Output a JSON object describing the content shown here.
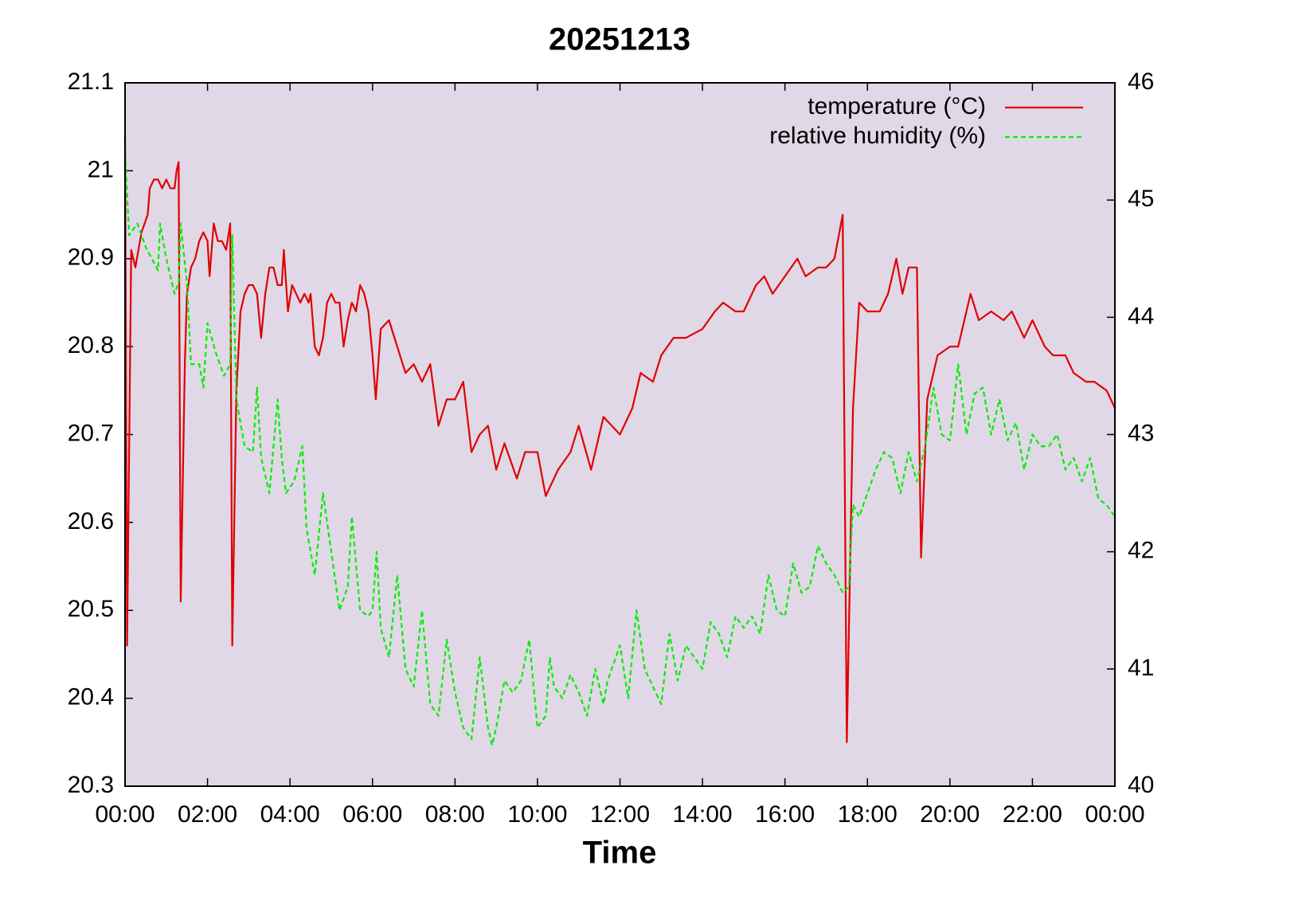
{
  "chart_data": {
    "type": "line",
    "title": "20251213",
    "xlabel": "Time",
    "xlim": [
      0,
      24
    ],
    "ylim": [
      20.3,
      21.1
    ],
    "y2lim": [
      40,
      46
    ],
    "xticks": [
      {
        "value": 0,
        "label": "00:00"
      },
      {
        "value": 2,
        "label": "02:00"
      },
      {
        "value": 4,
        "label": "04:00"
      },
      {
        "value": 6,
        "label": "06:00"
      },
      {
        "value": 8,
        "label": "08:00"
      },
      {
        "value": 10,
        "label": "10:00"
      },
      {
        "value": 12,
        "label": "12:00"
      },
      {
        "value": 14,
        "label": "14:00"
      },
      {
        "value": 16,
        "label": "16:00"
      },
      {
        "value": 18,
        "label": "18:00"
      },
      {
        "value": 20,
        "label": "20:00"
      },
      {
        "value": 22,
        "label": "22:00"
      },
      {
        "value": 24,
        "label": "00:00"
      }
    ],
    "yticks": [
      20.3,
      20.4,
      20.5,
      20.6,
      20.7,
      20.8,
      20.9,
      21,
      21.1
    ],
    "y2ticks": [
      40,
      41,
      42,
      43,
      44,
      45,
      46
    ],
    "legend": "upper right",
    "background": "#e0d8e6",
    "series": [
      {
        "name": "temperature (°C)",
        "color": "#e00000",
        "dash": false,
        "x": [
          0,
          0.05,
          0.15,
          0.25,
          0.4,
          0.55,
          0.6,
          0.7,
          0.8,
          0.9,
          1.0,
          1.1,
          1.2,
          1.25,
          1.3,
          1.35,
          1.45,
          1.5,
          1.6,
          1.7,
          1.8,
          1.9,
          2.0,
          2.05,
          2.15,
          2.25,
          2.35,
          2.45,
          2.55,
          2.6,
          2.7,
          2.8,
          2.9,
          3.0,
          3.1,
          3.2,
          3.3,
          3.4,
          3.5,
          3.6,
          3.7,
          3.8,
          3.85,
          3.95,
          4.05,
          4.15,
          4.25,
          4.35,
          4.45,
          4.5,
          4.6,
          4.7,
          4.8,
          4.9,
          5.0,
          5.1,
          5.2,
          5.3,
          5.4,
          5.5,
          5.6,
          5.7,
          5.8,
          5.9,
          6.0,
          6.08,
          6.2,
          6.4,
          6.6,
          6.8,
          7.0,
          7.2,
          7.4,
          7.6,
          7.8,
          8.0,
          8.2,
          8.4,
          8.6,
          8.8,
          9.0,
          9.2,
          9.5,
          9.7,
          10.0,
          10.2,
          10.5,
          10.8,
          11.0,
          11.3,
          11.6,
          12.0,
          12.3,
          12.5,
          12.8,
          13.0,
          13.3,
          13.6,
          14.0,
          14.3,
          14.5,
          14.8,
          15.0,
          15.3,
          15.5,
          15.7,
          16.0,
          16.3,
          16.5,
          16.8,
          17.0,
          17.2,
          17.4,
          17.5,
          17.65,
          17.8,
          18.0,
          18.3,
          18.5,
          18.7,
          18.85,
          19.0,
          19.2,
          19.3,
          19.45,
          19.7,
          20.0,
          20.2,
          20.4,
          20.5,
          20.7,
          21.0,
          21.3,
          21.5,
          21.8,
          22.0,
          22.3,
          22.5,
          22.8,
          23.0,
          23.3,
          23.5,
          23.8,
          24.0
        ],
        "y": [
          21.04,
          20.46,
          20.91,
          20.89,
          20.93,
          20.95,
          20.98,
          20.99,
          20.99,
          20.98,
          20.99,
          20.98,
          20.98,
          21.0,
          21.01,
          20.51,
          20.78,
          20.86,
          20.89,
          20.9,
          20.92,
          20.93,
          20.92,
          20.88,
          20.94,
          20.92,
          20.92,
          20.91,
          20.94,
          20.46,
          20.75,
          20.84,
          20.86,
          20.87,
          20.87,
          20.86,
          20.81,
          20.86,
          20.89,
          20.89,
          20.87,
          20.87,
          20.91,
          20.84,
          20.87,
          20.86,
          20.85,
          20.86,
          20.85,
          20.86,
          20.8,
          20.79,
          20.81,
          20.85,
          20.86,
          20.85,
          20.85,
          20.8,
          20.83,
          20.85,
          20.84,
          20.87,
          20.86,
          20.84,
          20.79,
          20.74,
          20.82,
          20.83,
          20.8,
          20.77,
          20.78,
          20.76,
          20.78,
          20.71,
          20.74,
          20.74,
          20.76,
          20.68,
          20.7,
          20.71,
          20.66,
          20.69,
          20.65,
          20.68,
          20.68,
          20.63,
          20.66,
          20.68,
          20.71,
          20.66,
          20.72,
          20.7,
          20.73,
          20.77,
          20.76,
          20.79,
          20.81,
          20.81,
          20.82,
          20.84,
          20.85,
          20.84,
          20.84,
          20.87,
          20.88,
          20.86,
          20.88,
          20.9,
          20.88,
          20.89,
          20.89,
          20.9,
          20.95,
          20.35,
          20.73,
          20.85,
          20.84,
          20.84,
          20.86,
          20.9,
          20.86,
          20.89,
          20.89,
          20.56,
          20.74,
          20.79,
          20.8,
          20.8,
          20.84,
          20.86,
          20.83,
          20.84,
          20.83,
          20.84,
          20.81,
          20.83,
          20.8,
          20.79,
          20.79,
          20.77,
          20.76,
          20.76,
          20.75,
          20.73
        ]
      },
      {
        "name": "relative humidity (%)",
        "color": "#00ee00",
        "dash": true,
        "axis": "y2",
        "x": [
          0,
          0.1,
          0.3,
          0.5,
          0.8,
          0.85,
          1.0,
          1.2,
          1.3,
          1.35,
          1.5,
          1.6,
          1.8,
          1.9,
          2.0,
          2.2,
          2.4,
          2.55,
          2.6,
          2.7,
          2.9,
          3.1,
          3.2,
          3.3,
          3.5,
          3.7,
          3.8,
          3.9,
          4.1,
          4.3,
          4.4,
          4.6,
          4.8,
          5.0,
          5.2,
          5.4,
          5.5,
          5.7,
          5.9,
          6.0,
          6.1,
          6.2,
          6.4,
          6.6,
          6.8,
          7.0,
          7.2,
          7.4,
          7.6,
          7.8,
          8.0,
          8.2,
          8.4,
          8.6,
          8.8,
          8.9,
          9.0,
          9.2,
          9.4,
          9.6,
          9.8,
          10.0,
          10.2,
          10.3,
          10.4,
          10.6,
          10.8,
          11.0,
          11.2,
          11.4,
          11.6,
          11.7,
          12.0,
          12.2,
          12.4,
          12.6,
          12.8,
          13.0,
          13.2,
          13.4,
          13.6,
          13.8,
          14.0,
          14.2,
          14.4,
          14.6,
          14.8,
          15.0,
          15.2,
          15.4,
          15.6,
          15.8,
          16.0,
          16.2,
          16.4,
          16.6,
          16.8,
          17.0,
          17.2,
          17.4,
          17.55,
          17.65,
          17.8,
          18.0,
          18.2,
          18.4,
          18.6,
          18.8,
          19.0,
          19.2,
          19.4,
          19.6,
          19.8,
          20.0,
          20.2,
          20.4,
          20.6,
          20.8,
          21.0,
          21.2,
          21.4,
          21.6,
          21.8,
          22.0,
          22.2,
          22.4,
          22.6,
          22.8,
          23.0,
          23.2,
          23.4,
          23.6,
          23.8,
          24.0
        ],
        "y": [
          45.4,
          44.7,
          44.8,
          44.6,
          44.4,
          44.8,
          44.5,
          44.2,
          44.3,
          44.8,
          44.3,
          43.6,
          43.6,
          43.4,
          43.95,
          43.7,
          43.5,
          43.6,
          44.7,
          43.3,
          42.9,
          42.85,
          43.4,
          42.8,
          42.5,
          43.3,
          42.8,
          42.5,
          42.6,
          42.9,
          42.2,
          41.8,
          42.5,
          42.0,
          41.5,
          41.7,
          42.3,
          41.5,
          41.45,
          41.5,
          42.0,
          41.35,
          41.1,
          41.8,
          41.0,
          40.85,
          41.5,
          40.7,
          40.6,
          41.25,
          40.8,
          40.5,
          40.4,
          41.1,
          40.5,
          40.35,
          40.5,
          40.9,
          40.8,
          40.9,
          41.25,
          40.5,
          40.6,
          41.1,
          40.85,
          40.75,
          40.95,
          40.8,
          40.6,
          41.0,
          40.7,
          40.9,
          41.2,
          40.75,
          41.5,
          41.0,
          40.85,
          40.7,
          41.3,
          40.9,
          41.2,
          41.1,
          41.0,
          41.4,
          41.3,
          41.1,
          41.45,
          41.35,
          41.45,
          41.3,
          41.8,
          41.5,
          41.45,
          41.9,
          41.65,
          41.7,
          42.05,
          41.9,
          41.8,
          41.65,
          41.7,
          42.4,
          42.3,
          42.5,
          42.7,
          42.85,
          42.8,
          42.5,
          42.85,
          42.6,
          42.9,
          43.4,
          43.0,
          42.95,
          43.6,
          43.0,
          43.35,
          43.4,
          43.0,
          43.3,
          42.95,
          43.1,
          42.7,
          43.0,
          42.9,
          42.9,
          43.0,
          42.7,
          42.8,
          42.6,
          42.8,
          42.45,
          42.4,
          42.3
        ]
      }
    ]
  }
}
